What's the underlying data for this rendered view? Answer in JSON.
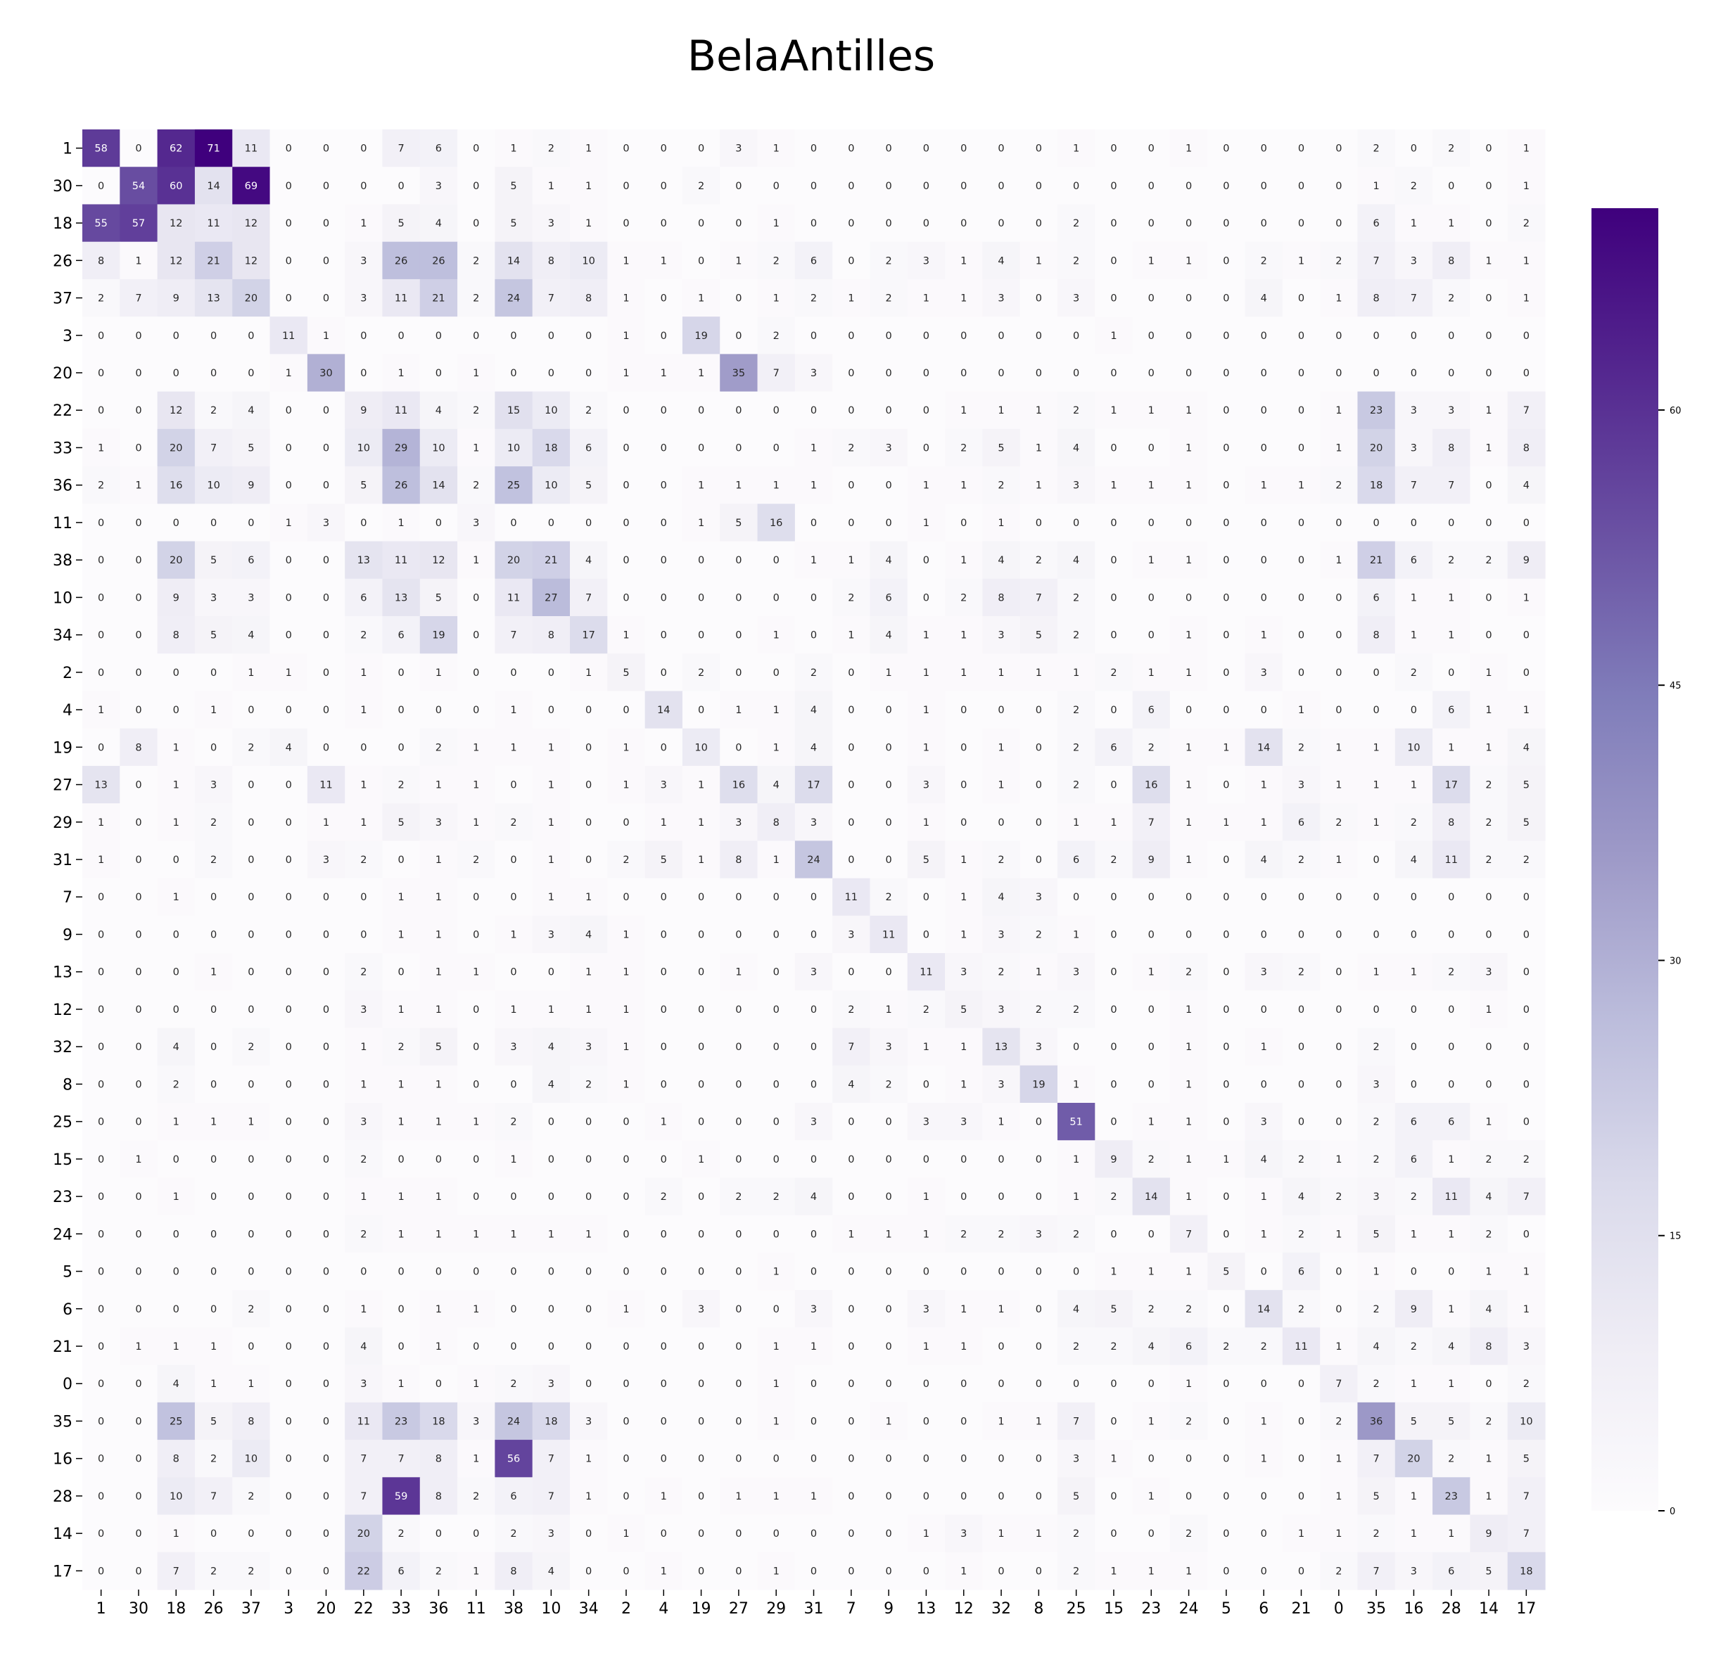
{
  "chart_data": {
    "type": "heatmap",
    "title": "BelaAntilles",
    "xlabel": "",
    "ylabel": "",
    "row_labels": [
      "1",
      "30",
      "18",
      "26",
      "37",
      "3",
      "20",
      "22",
      "33",
      "36",
      "11",
      "38",
      "10",
      "34",
      "2",
      "4",
      "19",
      "27",
      "29",
      "31",
      "7",
      "9",
      "13",
      "12",
      "32",
      "8",
      "25",
      "15",
      "23",
      "24",
      "5",
      "6",
      "21",
      "0",
      "35",
      "16",
      "28",
      "14",
      "17"
    ],
    "col_labels": [
      "1",
      "30",
      "18",
      "26",
      "37",
      "3",
      "20",
      "22",
      "33",
      "36",
      "11",
      "38",
      "10",
      "34",
      "2",
      "4",
      "19",
      "27",
      "29",
      "31",
      "7",
      "9",
      "13",
      "12",
      "32",
      "8",
      "25",
      "15",
      "23",
      "24",
      "5",
      "6",
      "21",
      "0",
      "35",
      "16",
      "28",
      "14",
      "17"
    ],
    "values": [
      [
        58,
        0,
        62,
        71,
        11,
        0,
        0,
        0,
        7,
        6,
        0,
        1,
        2,
        1,
        0,
        0,
        0,
        3,
        1,
        0,
        0,
        0,
        0,
        0,
        0,
        0,
        1,
        0,
        0,
        1,
        0,
        0,
        0,
        0,
        2,
        0,
        2,
        0,
        1
      ],
      [
        0,
        54,
        60,
        14,
        69,
        0,
        0,
        0,
        0,
        3,
        0,
        5,
        1,
        1,
        0,
        0,
        2,
        0,
        0,
        0,
        0,
        0,
        0,
        0,
        0,
        0,
        0,
        0,
        0,
        0,
        0,
        0,
        0,
        0,
        1,
        2,
        0,
        0,
        1
      ],
      [
        55,
        57,
        12,
        11,
        12,
        0,
        0,
        1,
        5,
        4,
        0,
        5,
        3,
        1,
        0,
        0,
        0,
        0,
        1,
        0,
        0,
        0,
        0,
        0,
        0,
        0,
        2,
        0,
        0,
        0,
        0,
        0,
        0,
        0,
        6,
        1,
        1,
        0,
        2
      ],
      [
        8,
        1,
        12,
        21,
        12,
        0,
        0,
        3,
        26,
        26,
        2,
        14,
        8,
        10,
        1,
        1,
        0,
        1,
        2,
        6,
        0,
        2,
        3,
        1,
        4,
        1,
        2,
        0,
        1,
        1,
        0,
        2,
        1,
        2,
        7,
        3,
        8,
        1,
        1
      ],
      [
        2,
        7,
        9,
        13,
        20,
        0,
        0,
        3,
        11,
        21,
        2,
        24,
        7,
        8,
        1,
        0,
        1,
        0,
        1,
        2,
        1,
        2,
        1,
        1,
        3,
        0,
        3,
        0,
        0,
        0,
        0,
        4,
        0,
        1,
        8,
        7,
        2,
        0,
        1
      ],
      [
        0,
        0,
        0,
        0,
        0,
        11,
        1,
        0,
        0,
        0,
        0,
        0,
        0,
        0,
        1,
        0,
        19,
        0,
        2,
        0,
        0,
        0,
        0,
        0,
        0,
        0,
        0,
        1,
        0,
        0,
        0,
        0,
        0,
        0,
        0,
        0,
        0,
        0,
        0
      ],
      [
        0,
        0,
        0,
        0,
        0,
        1,
        30,
        0,
        1,
        0,
        1,
        0,
        0,
        0,
        1,
        1,
        1,
        35,
        7,
        3,
        0,
        0,
        0,
        0,
        0,
        0,
        0,
        0,
        0,
        0,
        0,
        0,
        0,
        0,
        0,
        0,
        0,
        0,
        0
      ],
      [
        0,
        0,
        12,
        2,
        4,
        0,
        0,
        9,
        11,
        4,
        2,
        15,
        10,
        2,
        0,
        0,
        0,
        0,
        0,
        0,
        0,
        0,
        0,
        1,
        1,
        1,
        2,
        1,
        1,
        1,
        0,
        0,
        0,
        1,
        23,
        3,
        3,
        1,
        7
      ],
      [
        1,
        0,
        20,
        7,
        5,
        0,
        0,
        10,
        29,
        10,
        1,
        10,
        18,
        6,
        0,
        0,
        0,
        0,
        0,
        1,
        2,
        3,
        0,
        2,
        5,
        1,
        4,
        0,
        0,
        1,
        0,
        0,
        0,
        1,
        20,
        3,
        8,
        1,
        8
      ],
      [
        2,
        1,
        16,
        10,
        9,
        0,
        0,
        5,
        26,
        14,
        2,
        25,
        10,
        5,
        0,
        0,
        1,
        1,
        1,
        1,
        0,
        0,
        1,
        1,
        2,
        1,
        3,
        1,
        1,
        1,
        0,
        1,
        1,
        2,
        18,
        7,
        7,
        0,
        4
      ],
      [
        0,
        0,
        0,
        0,
        0,
        1,
        3,
        0,
        1,
        0,
        3,
        0,
        0,
        0,
        0,
        0,
        1,
        5,
        16,
        0,
        0,
        0,
        1,
        0,
        1,
        0,
        0,
        0,
        0,
        0,
        0,
        0,
        0,
        0,
        0,
        0,
        0,
        0,
        0
      ],
      [
        0,
        0,
        20,
        5,
        6,
        0,
        0,
        13,
        11,
        12,
        1,
        20,
        21,
        4,
        0,
        0,
        0,
        0,
        0,
        1,
        1,
        4,
        0,
        1,
        4,
        2,
        4,
        0,
        1,
        1,
        0,
        0,
        0,
        1,
        21,
        6,
        2,
        2,
        9
      ],
      [
        0,
        0,
        9,
        3,
        3,
        0,
        0,
        6,
        13,
        5,
        0,
        11,
        27,
        7,
        0,
        0,
        0,
        0,
        0,
        0,
        2,
        6,
        0,
        2,
        8,
        7,
        2,
        0,
        0,
        0,
        0,
        0,
        0,
        0,
        6,
        1,
        1,
        0,
        1
      ],
      [
        0,
        0,
        8,
        5,
        4,
        0,
        0,
        2,
        6,
        19,
        0,
        7,
        8,
        17,
        1,
        0,
        0,
        0,
        1,
        0,
        1,
        4,
        1,
        1,
        3,
        5,
        2,
        0,
        0,
        1,
        0,
        1,
        0,
        0,
        8,
        1,
        1,
        0,
        0
      ],
      [
        0,
        0,
        0,
        0,
        1,
        1,
        0,
        1,
        0,
        1,
        0,
        0,
        0,
        1,
        5,
        0,
        2,
        0,
        0,
        2,
        0,
        1,
        1,
        1,
        1,
        1,
        1,
        2,
        1,
        1,
        0,
        3,
        0,
        0,
        0,
        2,
        0,
        1,
        0
      ],
      [
        1,
        0,
        0,
        1,
        0,
        0,
        0,
        1,
        0,
        0,
        0,
        1,
        0,
        0,
        0,
        14,
        0,
        1,
        1,
        4,
        0,
        0,
        1,
        0,
        0,
        0,
        2,
        0,
        6,
        0,
        0,
        0,
        1,
        0,
        0,
        0,
        6,
        1,
        1
      ],
      [
        0,
        8,
        1,
        0,
        2,
        4,
        0,
        0,
        0,
        2,
        1,
        1,
        1,
        0,
        1,
        0,
        10,
        0,
        1,
        4,
        0,
        0,
        1,
        0,
        1,
        0,
        2,
        6,
        2,
        1,
        1,
        14,
        2,
        1,
        1,
        10,
        1,
        1,
        4
      ],
      [
        13,
        0,
        1,
        3,
        0,
        0,
        11,
        1,
        2,
        1,
        1,
        0,
        1,
        0,
        1,
        3,
        1,
        16,
        4,
        17,
        0,
        0,
        3,
        0,
        1,
        0,
        2,
        0,
        16,
        1,
        0,
        1,
        3,
        1,
        1,
        1,
        17,
        2,
        5
      ],
      [
        1,
        0,
        1,
        2,
        0,
        0,
        1,
        1,
        5,
        3,
        1,
        2,
        1,
        0,
        0,
        1,
        1,
        3,
        8,
        3,
        0,
        0,
        1,
        0,
        0,
        0,
        1,
        1,
        7,
        1,
        1,
        1,
        6,
        2,
        1,
        2,
        8,
        2,
        5
      ],
      [
        1,
        0,
        0,
        2,
        0,
        0,
        3,
        2,
        0,
        1,
        2,
        0,
        1,
        0,
        2,
        5,
        1,
        8,
        1,
        24,
        0,
        0,
        5,
        1,
        2,
        0,
        6,
        2,
        9,
        1,
        0,
        4,
        2,
        1,
        0,
        4,
        11,
        2,
        2
      ],
      [
        0,
        0,
        1,
        0,
        0,
        0,
        0,
        0,
        1,
        1,
        0,
        0,
        1,
        1,
        0,
        0,
        0,
        0,
        0,
        0,
        11,
        2,
        0,
        1,
        4,
        3,
        0,
        0,
        0,
        0,
        0,
        0,
        0,
        0,
        0,
        0,
        0,
        0,
        0
      ],
      [
        0,
        0,
        0,
        0,
        0,
        0,
        0,
        0,
        1,
        1,
        0,
        1,
        3,
        4,
        1,
        0,
        0,
        0,
        0,
        0,
        3,
        11,
        0,
        1,
        3,
        2,
        1,
        0,
        0,
        0,
        0,
        0,
        0,
        0,
        0,
        0,
        0,
        0,
        0
      ],
      [
        0,
        0,
        0,
        1,
        0,
        0,
        0,
        2,
        0,
        1,
        1,
        0,
        0,
        1,
        1,
        0,
        0,
        1,
        0,
        3,
        0,
        0,
        11,
        3,
        2,
        1,
        3,
        0,
        1,
        2,
        0,
        3,
        2,
        0,
        1,
        1,
        2,
        3,
        0
      ],
      [
        0,
        0,
        0,
        0,
        0,
        0,
        0,
        3,
        1,
        1,
        0,
        1,
        1,
        1,
        1,
        0,
        0,
        0,
        0,
        0,
        2,
        1,
        2,
        5,
        3,
        2,
        2,
        0,
        0,
        1,
        0,
        0,
        0,
        0,
        0,
        0,
        0,
        1,
        0
      ],
      [
        0,
        0,
        4,
        0,
        2,
        0,
        0,
        1,
        2,
        5,
        0,
        3,
        4,
        3,
        1,
        0,
        0,
        0,
        0,
        0,
        7,
        3,
        1,
        1,
        13,
        3,
        0,
        0,
        0,
        1,
        0,
        1,
        0,
        0,
        2,
        0,
        0,
        0,
        0
      ],
      [
        0,
        0,
        2,
        0,
        0,
        0,
        0,
        1,
        1,
        1,
        0,
        0,
        4,
        2,
        1,
        0,
        0,
        0,
        0,
        0,
        4,
        2,
        0,
        1,
        3,
        19,
        1,
        0,
        0,
        1,
        0,
        0,
        0,
        0,
        3,
        0,
        0,
        0,
        0
      ],
      [
        0,
        0,
        1,
        1,
        1,
        0,
        0,
        3,
        1,
        1,
        1,
        2,
        0,
        0,
        0,
        1,
        0,
        0,
        0,
        3,
        0,
        0,
        3,
        3,
        1,
        0,
        51,
        0,
        1,
        1,
        0,
        3,
        0,
        0,
        2,
        6,
        6,
        1,
        0
      ],
      [
        0,
        1,
        0,
        0,
        0,
        0,
        0,
        2,
        0,
        0,
        0,
        1,
        0,
        0,
        0,
        0,
        1,
        0,
        0,
        0,
        0,
        0,
        0,
        0,
        0,
        0,
        1,
        9,
        2,
        1,
        1,
        4,
        2,
        1,
        2,
        6,
        1,
        2,
        2
      ],
      [
        0,
        0,
        1,
        0,
        0,
        0,
        0,
        1,
        1,
        1,
        0,
        0,
        0,
        0,
        0,
        2,
        0,
        2,
        2,
        4,
        0,
        0,
        1,
        0,
        0,
        0,
        1,
        2,
        14,
        1,
        0,
        1,
        4,
        2,
        3,
        2,
        11,
        4,
        7
      ],
      [
        0,
        0,
        0,
        0,
        0,
        0,
        0,
        2,
        1,
        1,
        1,
        1,
        1,
        1,
        0,
        0,
        0,
        0,
        0,
        0,
        1,
        1,
        1,
        2,
        2,
        3,
        2,
        0,
        0,
        7,
        0,
        1,
        2,
        1,
        5,
        1,
        1,
        2,
        0
      ],
      [
        0,
        0,
        0,
        0,
        0,
        0,
        0,
        0,
        0,
        0,
        0,
        0,
        0,
        0,
        0,
        0,
        0,
        0,
        1,
        0,
        0,
        0,
        0,
        0,
        0,
        0,
        0,
        1,
        1,
        1,
        5,
        0,
        6,
        0,
        1,
        0,
        0,
        1,
        1
      ],
      [
        0,
        0,
        0,
        0,
        2,
        0,
        0,
        1,
        0,
        1,
        1,
        0,
        0,
        0,
        1,
        0,
        3,
        0,
        0,
        3,
        0,
        0,
        3,
        1,
        1,
        0,
        4,
        5,
        2,
        2,
        0,
        14,
        2,
        0,
        2,
        9,
        1,
        4,
        1
      ],
      [
        0,
        1,
        1,
        1,
        0,
        0,
        0,
        4,
        0,
        1,
        0,
        0,
        0,
        0,
        0,
        0,
        0,
        0,
        1,
        1,
        0,
        0,
        1,
        1,
        0,
        0,
        2,
        2,
        4,
        6,
        2,
        2,
        11,
        1,
        4,
        2,
        4,
        8,
        3
      ],
      [
        0,
        0,
        4,
        1,
        1,
        0,
        0,
        3,
        1,
        0,
        1,
        2,
        3,
        0,
        0,
        0,
        0,
        0,
        1,
        0,
        0,
        0,
        0,
        0,
        0,
        0,
        0,
        0,
        0,
        1,
        0,
        0,
        0,
        7,
        2,
        1,
        1,
        0,
        2
      ],
      [
        0,
        0,
        25,
        5,
        8,
        0,
        0,
        11,
        23,
        18,
        3,
        24,
        18,
        3,
        0,
        0,
        0,
        0,
        1,
        0,
        0,
        1,
        0,
        0,
        1,
        1,
        7,
        0,
        1,
        2,
        0,
        1,
        0,
        2,
        36,
        5,
        5,
        2,
        10
      ],
      [
        0,
        0,
        8,
        2,
        10,
        0,
        0,
        7,
        7,
        8,
        1,
        56,
        7,
        1,
        0,
        0,
        0,
        0,
        0,
        0,
        0,
        0,
        0,
        0,
        0,
        0,
        3,
        1,
        0,
        0,
        0,
        1,
        0,
        1,
        7,
        20,
        2,
        1,
        5
      ],
      [
        0,
        0,
        10,
        7,
        2,
        0,
        0,
        7,
        59,
        8,
        2,
        6,
        7,
        1,
        0,
        1,
        0,
        1,
        1,
        1,
        0,
        0,
        0,
        0,
        0,
        0,
        5,
        0,
        1,
        0,
        0,
        0,
        0,
        1,
        5,
        1,
        23,
        1,
        7
      ],
      [
        0,
        0,
        1,
        0,
        0,
        0,
        0,
        20,
        2,
        0,
        0,
        2,
        3,
        0,
        1,
        0,
        0,
        0,
        0,
        0,
        0,
        0,
        1,
        3,
        1,
        1,
        2,
        0,
        0,
        2,
        0,
        0,
        1,
        1,
        2,
        1,
        1,
        9,
        7
      ],
      [
        0,
        0,
        7,
        2,
        2,
        0,
        0,
        22,
        6,
        2,
        1,
        8,
        4,
        0,
        0,
        1,
        0,
        0,
        1,
        0,
        0,
        0,
        0,
        1,
        0,
        0,
        2,
        1,
        1,
        1,
        0,
        0,
        0,
        2,
        7,
        3,
        6,
        5,
        18
      ]
    ],
    "vmin": 0,
    "vmax": 71,
    "colormap": "Purples",
    "colorbar_ticks": [
      0,
      15,
      30,
      45,
      60
    ],
    "colorbar_colors": {
      "low": "#fcfbfd",
      "high": "#3f007d"
    },
    "grid": false,
    "legend": "colorbar-right"
  }
}
